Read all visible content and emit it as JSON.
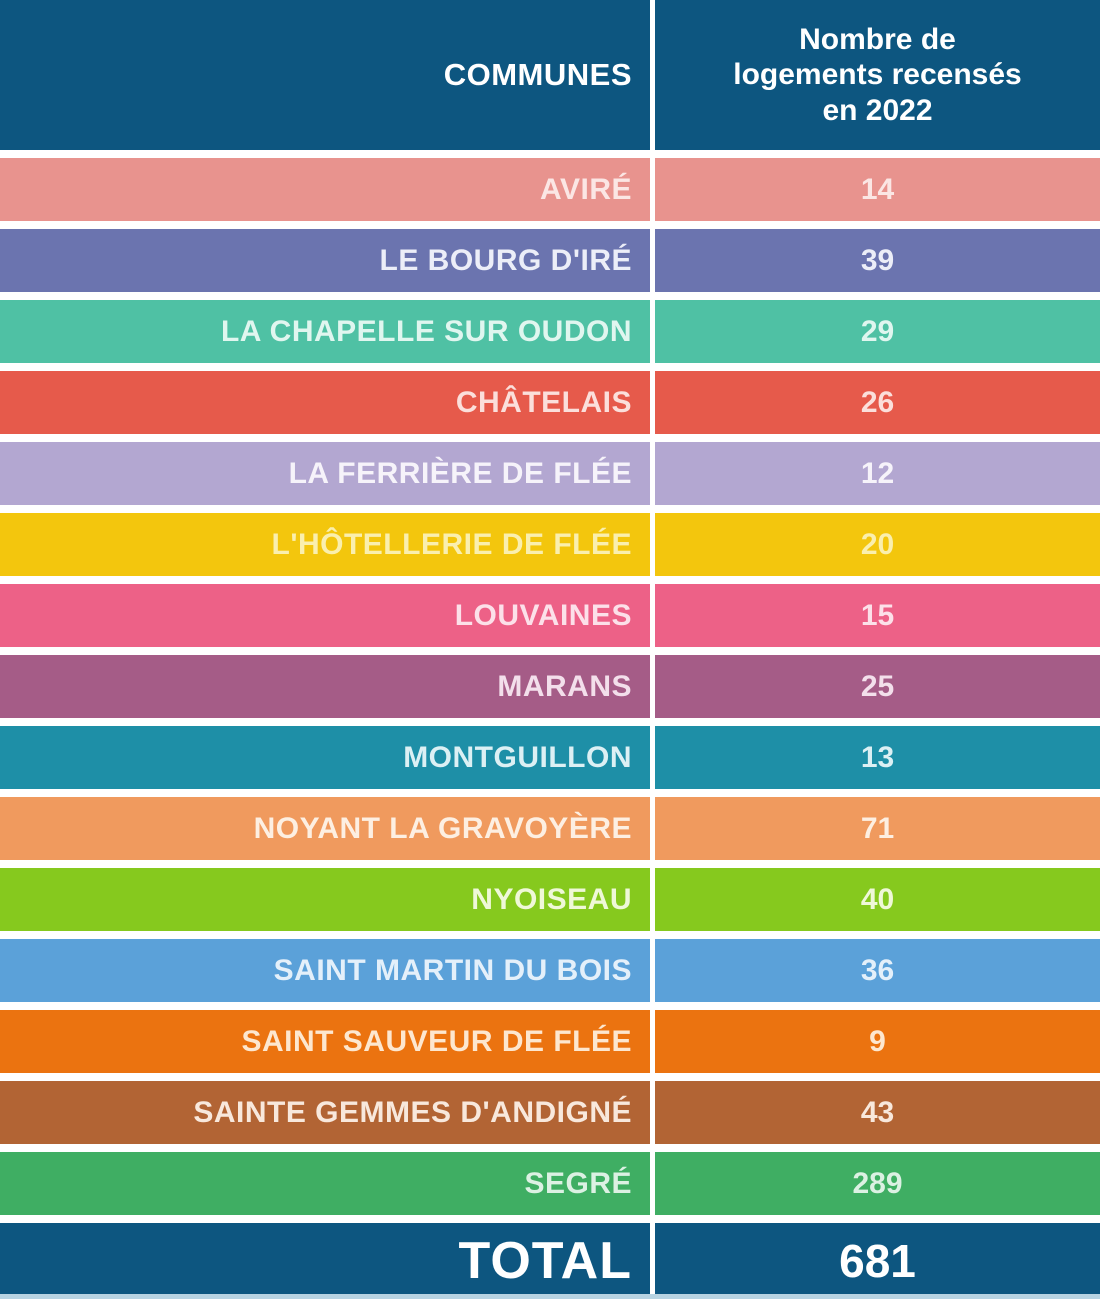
{
  "table": {
    "header": {
      "communes_label": "COMMUNES",
      "count_label": "Nombre de\nlogements recensés\nen 2022",
      "bg": "#0d5680",
      "text_color": "#ffffff"
    },
    "rows": [
      {
        "name": "AVIRÉ",
        "value": 14,
        "bg": "#e8938e",
        "text_color": "#fbe6e4"
      },
      {
        "name": "LE BOURG D'IRÉ",
        "value": 39,
        "bg": "#6b74af",
        "text_color": "#eceef8"
      },
      {
        "name": "LA CHAPELLE SUR OUDON",
        "value": 29,
        "bg": "#4fc1a4",
        "text_color": "#e0f6ef"
      },
      {
        "name": "CHÂTELAIS",
        "value": 26,
        "bg": "#e65a4b",
        "text_color": "#fbdfdb"
      },
      {
        "name": "LA FERRIÈRE DE FLÉE",
        "value": 12,
        "bg": "#b3a7d1",
        "text_color": "#f6f3fa"
      },
      {
        "name": "L'HÔTELLERIE DE FLÉE",
        "value": 20,
        "bg": "#f3c60d",
        "text_color": "#faefae"
      },
      {
        "name": "LOUVAINES",
        "value": 15,
        "bg": "#ed6187",
        "text_color": "#fce0e9"
      },
      {
        "name": "MARANS",
        "value": 25,
        "bg": "#a55c87",
        "text_color": "#f3dfeb"
      },
      {
        "name": "MONTGUILLON",
        "value": 13,
        "bg": "#1e8fa7",
        "text_color": "#dcf0f4"
      },
      {
        "name": "NOYANT LA GRAVOYÈRE",
        "value": 71,
        "bg": "#f09a5e",
        "text_color": "#fdefe2"
      },
      {
        "name": "NYOISEAU",
        "value": 40,
        "bg": "#86c91e",
        "text_color": "#eff8d8"
      },
      {
        "name": "SAINT MARTIN DU BOIS",
        "value": 36,
        "bg": "#5ba1d9",
        "text_color": "#e4f0fa"
      },
      {
        "name": "SAINT SAUVEUR DE FLÉE",
        "value": 9,
        "bg": "#eb7310",
        "text_color": "#fde7cf"
      },
      {
        "name": "SAINTE GEMMES D'ANDIGNÉ",
        "value": 43,
        "bg": "#b26434",
        "text_color": "#f8e8dc"
      },
      {
        "name": "SEGRÉ",
        "value": 289,
        "bg": "#3fae63",
        "text_color": "#dcf1e3"
      }
    ],
    "total": {
      "label": "TOTAL",
      "value": 681,
      "bg": "#0d5680",
      "text_color": "#ffffff"
    }
  },
  "chart_data": {
    "type": "table",
    "title": "",
    "columns": [
      "COMMUNES",
      "Nombre de logements recensés en 2022"
    ],
    "categories": [
      "AVIRÉ",
      "LE BOURG D'IRÉ",
      "LA CHAPELLE SUR OUDON",
      "CHÂTELAIS",
      "LA FERRIÈRE DE FLÉE",
      "L'HÔTELLERIE DE FLÉE",
      "LOUVAINES",
      "MARANS",
      "MONTGUILLON",
      "NOYANT LA GRAVOYÈRE",
      "NYOISEAU",
      "SAINT MARTIN DU BOIS",
      "SAINT SAUVEUR DE FLÉE",
      "SAINTE GEMMES D'ANDIGNÉ",
      "SEGRÉ"
    ],
    "values": [
      14,
      39,
      29,
      26,
      12,
      20,
      15,
      25,
      13,
      71,
      40,
      36,
      9,
      43,
      289
    ],
    "total_label": "TOTAL",
    "total_value": 681
  }
}
